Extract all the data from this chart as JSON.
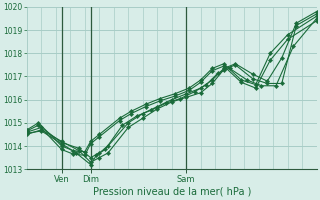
{
  "xlabel": "Pression niveau de la mer( hPa )",
  "background_color": "#d8ede8",
  "grid_color": "#a8cdc6",
  "line_color": "#1a6b3a",
  "vline_color": "#2d5a3d",
  "ylim": [
    1013.0,
    1020.0
  ],
  "yticks": [
    1013,
    1014,
    1015,
    1016,
    1017,
    1018,
    1019,
    1020
  ],
  "xlim": [
    0.0,
    1.0
  ],
  "xtick_labels": [
    "Ven",
    "Dim",
    "Sam"
  ],
  "xtick_positions": [
    0.12,
    0.22,
    0.55
  ],
  "vline_positions": [
    0.12,
    0.22,
    0.55
  ],
  "series": [
    {
      "x": [
        0.0,
        0.05,
        0.12,
        0.18,
        0.22,
        0.25,
        0.28,
        0.35,
        0.4,
        0.45,
        0.5,
        0.55,
        0.6,
        0.64,
        0.68,
        0.72,
        0.78,
        0.83,
        0.88,
        0.93,
        1.0
      ],
      "y": [
        1014.5,
        1014.7,
        1014.2,
        1013.8,
        1013.3,
        1013.5,
        1013.7,
        1014.8,
        1015.2,
        1015.6,
        1015.9,
        1016.1,
        1016.3,
        1016.7,
        1017.3,
        1017.5,
        1016.9,
        1016.7,
        1016.7,
        1019.2,
        1019.7
      ]
    },
    {
      "x": [
        0.0,
        0.05,
        0.12,
        0.18,
        0.22,
        0.25,
        0.28,
        0.35,
        0.4,
        0.45,
        0.5,
        0.55,
        0.6,
        0.64,
        0.68,
        0.72,
        0.78,
        0.83,
        0.88,
        0.93,
        1.0
      ],
      "y": [
        1014.6,
        1014.8,
        1014.15,
        1013.9,
        1013.5,
        1013.7,
        1014.0,
        1015.0,
        1015.4,
        1015.7,
        1016.0,
        1016.25,
        1016.5,
        1016.85,
        1017.35,
        1017.55,
        1017.1,
        1016.8,
        1017.8,
        1019.3,
        1019.8
      ]
    },
    {
      "x": [
        0.0,
        0.05,
        0.12,
        0.17,
        0.22,
        0.24,
        0.27,
        0.33,
        0.38,
        0.43,
        0.48,
        0.53,
        0.58,
        0.62,
        0.66,
        0.7,
        0.76,
        0.81,
        0.86,
        0.92,
        1.0
      ],
      "y": [
        1014.55,
        1014.65,
        1014.1,
        1013.7,
        1013.2,
        1013.6,
        1013.85,
        1014.9,
        1015.3,
        1015.55,
        1015.85,
        1016.05,
        1016.35,
        1016.65,
        1017.15,
        1017.35,
        1016.85,
        1016.6,
        1016.6,
        1018.3,
        1019.5
      ]
    },
    {
      "x": [
        0.0,
        0.04,
        0.12,
        0.16,
        0.2,
        0.22,
        0.25,
        0.32,
        0.36,
        0.41,
        0.46,
        0.51,
        0.56,
        0.6,
        0.64,
        0.68,
        0.74,
        0.79,
        0.84,
        0.9,
        1.0
      ],
      "y": [
        1014.7,
        1015.0,
        1014.0,
        1013.8,
        1013.75,
        1014.2,
        1014.5,
        1015.2,
        1015.5,
        1015.8,
        1016.05,
        1016.25,
        1016.5,
        1016.85,
        1017.35,
        1017.55,
        1016.85,
        1016.65,
        1018.0,
        1018.8,
        1019.6
      ]
    },
    {
      "x": [
        0.0,
        0.04,
        0.12,
        0.16,
        0.2,
        0.22,
        0.25,
        0.32,
        0.36,
        0.41,
        0.46,
        0.51,
        0.56,
        0.6,
        0.64,
        0.68,
        0.74,
        0.79,
        0.84,
        0.9,
        1.0
      ],
      "y": [
        1014.65,
        1014.9,
        1013.85,
        1013.65,
        1013.6,
        1014.1,
        1014.4,
        1015.1,
        1015.4,
        1015.7,
        1015.95,
        1016.15,
        1016.4,
        1016.75,
        1017.25,
        1017.45,
        1016.75,
        1016.5,
        1017.7,
        1018.6,
        1019.4
      ]
    }
  ]
}
